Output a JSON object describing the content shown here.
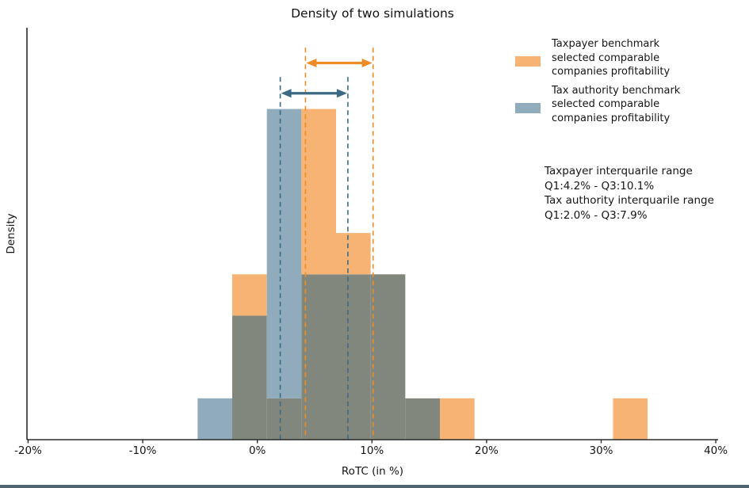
{
  "page": {
    "title": "Density of two simulations"
  },
  "axes": {
    "xlabel": "RoTC (in %)",
    "ylabel": "Density"
  },
  "legend": {
    "items": [
      {
        "label": "Taxpayer benchmark\nselected comparable\ncompanies profitability",
        "color": "#f6b373"
      },
      {
        "label": "Tax authority benchmark\nselected comparable\ncompanies profitability",
        "color": "#8fabbc"
      }
    ]
  },
  "annotation": {
    "text": "Taxpayer interquarile range\nQ1:4.2% - Q3:10.1%\nTax authority interquarile range\nQ1:2.0% - Q3:7.9%"
  },
  "window": {
    "bottom_border_color": "#4d636f"
  },
  "chart_data": {
    "type": "histogram",
    "title": "Density of two simulations",
    "xlabel": "RoTC (in %)",
    "ylabel": "Density",
    "grid": false,
    "legend_position": "outside upper right",
    "xlim": [
      -20.1,
      40.2
    ],
    "ylim": [
      0,
      0.132
    ],
    "x_ticks": [
      {
        "value": -20,
        "label": "-20%"
      },
      {
        "value": -10,
        "label": "-10%"
      },
      {
        "value": 0,
        "label": "0%"
      },
      {
        "value": 10,
        "label": "10%"
      },
      {
        "value": 20,
        "label": "20%"
      },
      {
        "value": 30,
        "label": "30%"
      },
      {
        "value": 40,
        "label": "40%"
      }
    ],
    "overlap_color": "#81877d",
    "axis_color": "#2a2a2a",
    "series": [
      {
        "name": "Taxpayer benchmark selected comparable companies profitability",
        "fill": "#f6b373",
        "accent": "#ee8c26",
        "n": 25,
        "bin_start": -2.19,
        "bin_width": 3.02,
        "counts": [
          4,
          1,
          8,
          5,
          4,
          1,
          1,
          0,
          0,
          0,
          0,
          1
        ],
        "q1": 4.2,
        "q3": 10.1,
        "line_top_density": 0.1256,
        "arrow_density": 0.1207
      },
      {
        "name": "Tax authority benchmark selected comparable companies profitability",
        "fill": "#8fabbc",
        "accent": "#3c6a84",
        "n": 25,
        "bin_start": -5.21,
        "bin_width": 3.02,
        "counts": [
          1,
          3,
          8,
          4,
          4,
          4,
          1
        ],
        "q1": 2.0,
        "q3": 7.9,
        "line_top_density": 0.1162,
        "arrow_density": 0.111
      }
    ]
  }
}
